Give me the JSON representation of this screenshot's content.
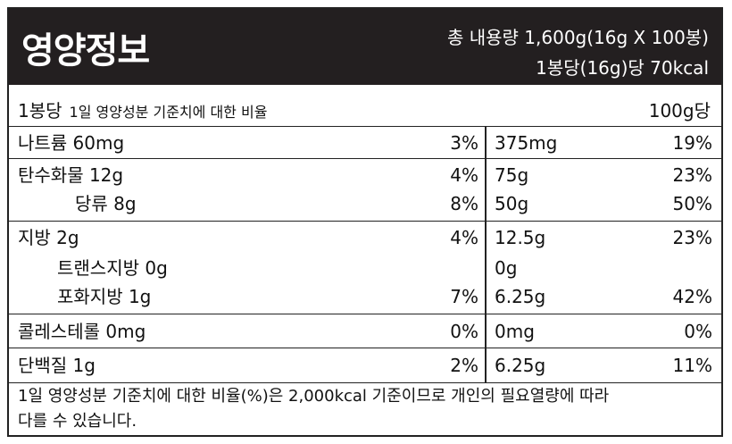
{
  "header": {
    "title": "영양정보",
    "total": "총 내용량 1,600g(16g X 100봉)",
    "per_pack": "1봉당(16g)당 70kcal"
  },
  "column_header": {
    "left_main": "1봉당",
    "left_sub": "1일 영양성분 기준치에 대한 비율",
    "right": "100g당"
  },
  "rows": [
    {
      "name": "나트륨  60mg",
      "pct": "3%",
      "amt100": "375mg",
      "pct100": "19%"
    },
    {
      "name": "탄수화물  12g",
      "pct": "4%",
      "amt100": "75g",
      "pct100": "23%"
    },
    {
      "name": "당류  8g",
      "pct": "8%",
      "amt100": "50g",
      "pct100": "50%"
    },
    {
      "name": "지방  2g",
      "pct": "4%",
      "amt100": "12.5g",
      "pct100": "23%"
    },
    {
      "name": "트랜스지방 0g",
      "pct": "",
      "amt100": "0g",
      "pct100": ""
    },
    {
      "name": "포화지방  1g",
      "pct": "7%",
      "amt100": "6.25g",
      "pct100": "42%"
    },
    {
      "name": "콜레스테롤  0mg",
      "pct": "0%",
      "amt100": "0mg",
      "pct100": "0%"
    },
    {
      "name": "단백질  1g",
      "pct": "2%",
      "amt100": "6.25g",
      "pct100": "11%"
    }
  ],
  "footer": {
    "line1": "1일 영양성분 기준치에 대한 비율(%)은 2,000kcal 기준이므로 개인의 필요열량에 따라",
    "line2": "다를 수 있습니다."
  }
}
